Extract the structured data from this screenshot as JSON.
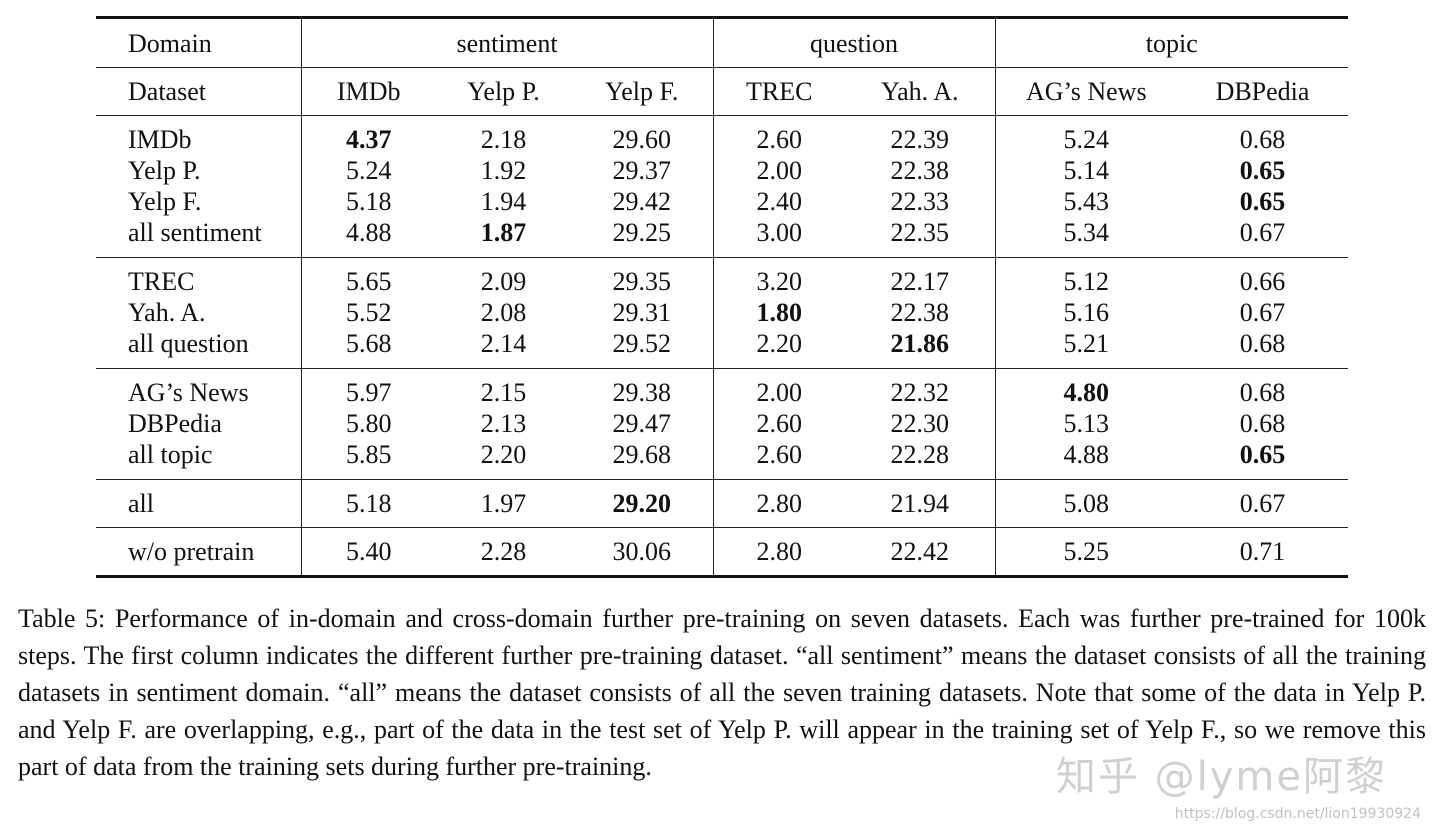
{
  "table": {
    "header_domain": {
      "label": "Domain",
      "groups": [
        "sentiment",
        "question",
        "topic"
      ]
    },
    "header_dataset": {
      "label": "Dataset",
      "columns": [
        "IMDb",
        "Yelp P.",
        "Yelp F.",
        "TREC",
        "Yah. A.",
        "AG’s News",
        "DBPedia"
      ]
    },
    "rows": [
      {
        "name": "IMDb",
        "values": [
          "4.37",
          "2.18",
          "29.60",
          "2.60",
          "22.39",
          "5.24",
          "0.68"
        ],
        "bold": [
          0
        ]
      },
      {
        "name": "Yelp P.",
        "values": [
          "5.24",
          "1.92",
          "29.37",
          "2.00",
          "22.38",
          "5.14",
          "0.65"
        ],
        "bold": [
          6
        ]
      },
      {
        "name": "Yelp F.",
        "values": [
          "5.18",
          "1.94",
          "29.42",
          "2.40",
          "22.33",
          "5.43",
          "0.65"
        ],
        "bold": [
          6
        ]
      },
      {
        "name": "all sentiment",
        "values": [
          "4.88",
          "1.87",
          "29.25",
          "3.00",
          "22.35",
          "5.34",
          "0.67"
        ],
        "bold": [
          1
        ]
      },
      {
        "name": "TREC",
        "values": [
          "5.65",
          "2.09",
          "29.35",
          "3.20",
          "22.17",
          "5.12",
          "0.66"
        ],
        "bold": []
      },
      {
        "name": "Yah. A.",
        "values": [
          "5.52",
          "2.08",
          "29.31",
          "1.80",
          "22.38",
          "5.16",
          "0.67"
        ],
        "bold": [
          3
        ]
      },
      {
        "name": "all question",
        "values": [
          "5.68",
          "2.14",
          "29.52",
          "2.20",
          "21.86",
          "5.21",
          "0.68"
        ],
        "bold": [
          4
        ]
      },
      {
        "name": "AG’s News",
        "values": [
          "5.97",
          "2.15",
          "29.38",
          "2.00",
          "22.32",
          "4.80",
          "0.68"
        ],
        "bold": [
          5
        ]
      },
      {
        "name": "DBPedia",
        "values": [
          "5.80",
          "2.13",
          "29.47",
          "2.60",
          "22.30",
          "5.13",
          "0.68"
        ],
        "bold": []
      },
      {
        "name": "all topic",
        "values": [
          "5.85",
          "2.20",
          "29.68",
          "2.60",
          "22.28",
          "4.88",
          "0.65"
        ],
        "bold": [
          6
        ]
      },
      {
        "name": "all",
        "values": [
          "5.18",
          "1.97",
          "29.20",
          "2.80",
          "21.94",
          "5.08",
          "0.67"
        ],
        "bold": [
          2
        ]
      },
      {
        "name": "w/o pretrain",
        "values": [
          "5.40",
          "2.28",
          "30.06",
          "2.80",
          "22.42",
          "5.25",
          "0.71"
        ],
        "bold": []
      }
    ]
  },
  "caption": "Table 5: Performance of in-domain and cross-domain further pre-training on seven datasets. Each was further pre-trained for 100k steps. The first column indicates the different further pre-training dataset. “all sentiment” means the dataset consists of all the training datasets in sentiment domain. “all” means the dataset consists of all the seven training datasets. Note that some of the data in Yelp P. and Yelp F. are overlapping, e.g., part of the data in the test set of Yelp P. will appear in the training set of Yelp F., so we remove this part of data from the training sets during further pre-training.",
  "watermark": {
    "text": "知乎 @lyme阿黎",
    "url": "https://blog.csdn.net/lion19930924"
  }
}
